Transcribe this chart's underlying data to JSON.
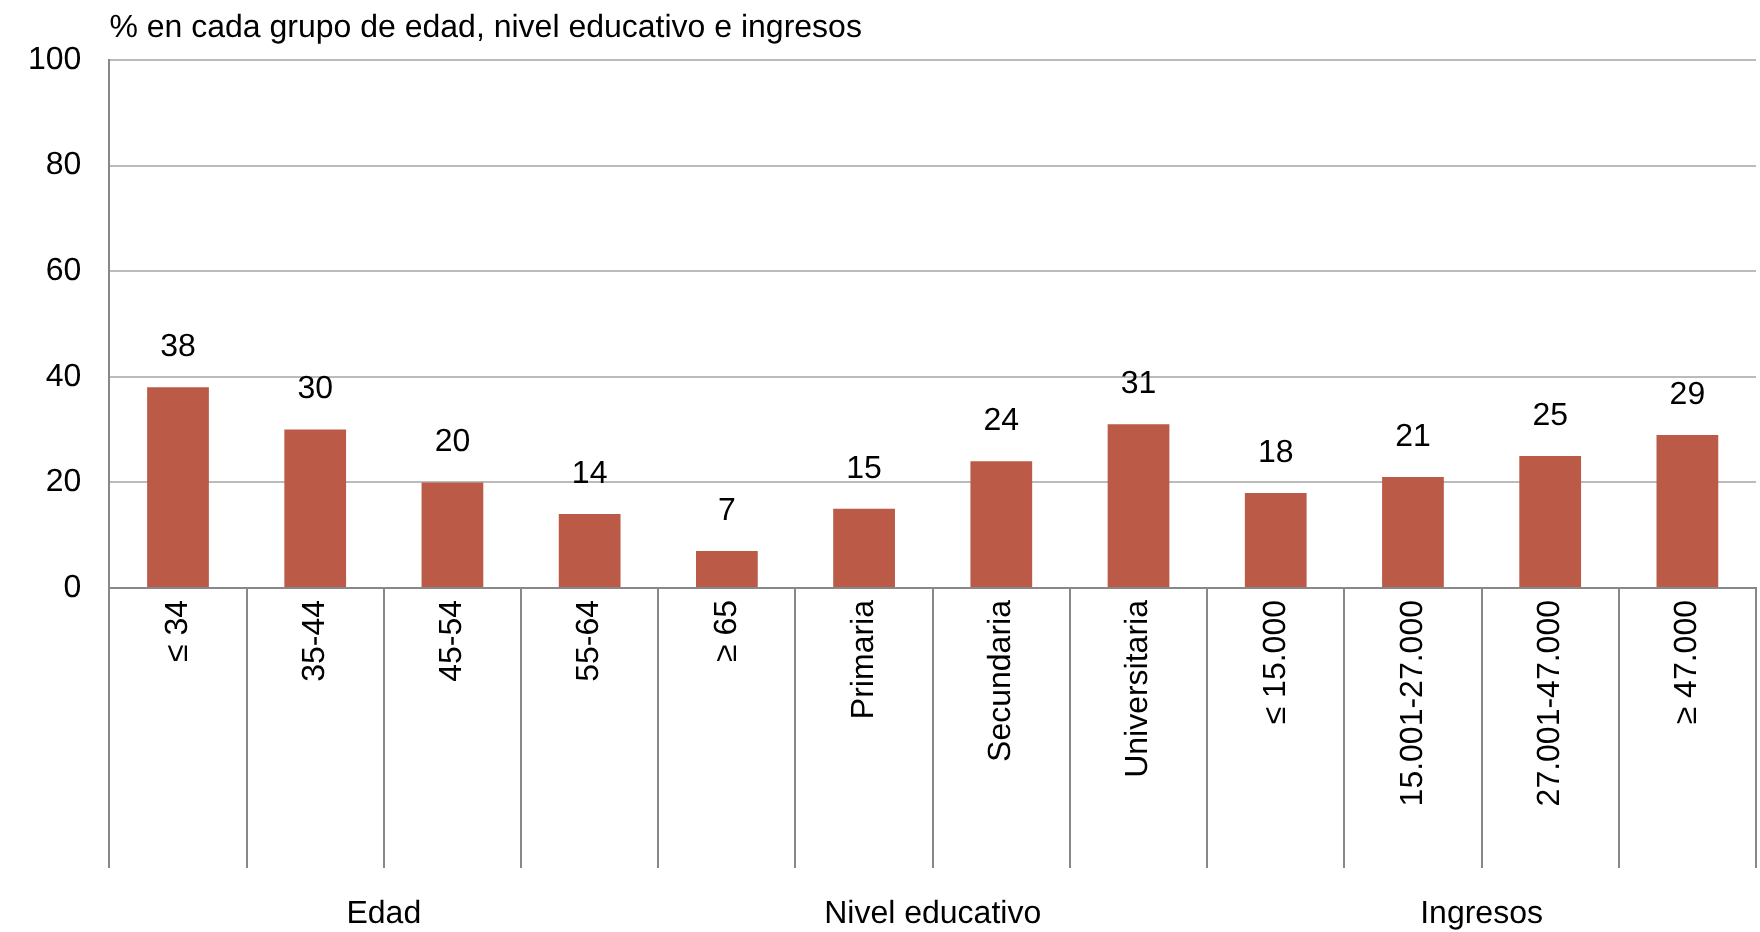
{
  "chart_data": {
    "type": "bar",
    "title": "% en cada grupo de edad, nivel educativo e ingresos",
    "categories": [
      "≤ 34",
      "35-44",
      "45-54",
      "55-64",
      "≥ 65",
      "Primaria",
      "Secundaria",
      "Universitaria",
      "≤ 15.000",
      "15.001-27.000",
      "27.001-47.000",
      "≥ 47.000"
    ],
    "values": [
      38,
      30,
      20,
      14,
      7,
      15,
      24,
      31,
      18,
      21,
      25,
      29
    ],
    "color": "#bb5a46",
    "ylim": [
      0,
      100
    ],
    "yticks": [
      0,
      20,
      40,
      60,
      80,
      100
    ],
    "grid": "y",
    "data_labels": true,
    "annotations": [
      "Edad",
      "Nivel educativo",
      "Ingresos"
    ]
  }
}
